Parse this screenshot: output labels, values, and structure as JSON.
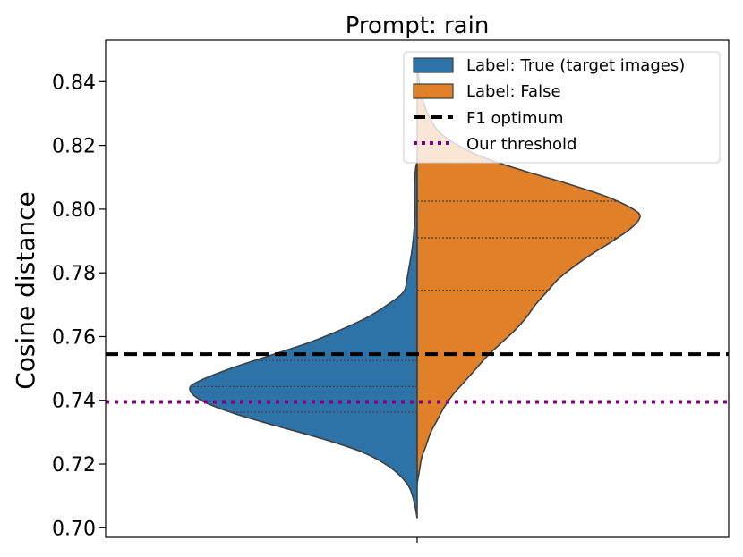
{
  "chart_data": {
    "type": "violin",
    "title": "Prompt: rain",
    "xlabel": "",
    "ylabel": "Cosine distance",
    "ylim": [
      0.697,
      0.853
    ],
    "yticks": [
      0.7,
      0.72,
      0.74,
      0.76,
      0.78,
      0.8,
      0.82,
      0.84
    ],
    "ytick_labels": [
      "0.70",
      "0.72",
      "0.74",
      "0.76",
      "0.78",
      "0.80",
      "0.82",
      "0.84"
    ],
    "split": true,
    "inner": "quartile",
    "grid": false,
    "legend_position": "top-right",
    "series": [
      {
        "name": "Label: True (target images)",
        "side": "left",
        "color": "#2e73a8",
        "range": [
          0.703,
          0.815
        ],
        "quartiles": [
          0.7363,
          0.7443,
          0.7525
        ],
        "density": [
          [
            0.703,
            0.0
          ],
          [
            0.707,
            0.01
          ],
          [
            0.712,
            0.03
          ],
          [
            0.716,
            0.07
          ],
          [
            0.72,
            0.14
          ],
          [
            0.724,
            0.25
          ],
          [
            0.728,
            0.42
          ],
          [
            0.732,
            0.62
          ],
          [
            0.736,
            0.81
          ],
          [
            0.74,
            0.95
          ],
          [
            0.7435,
            1.0
          ],
          [
            0.746,
            0.96
          ],
          [
            0.75,
            0.82
          ],
          [
            0.754,
            0.65
          ],
          [
            0.758,
            0.48
          ],
          [
            0.762,
            0.34
          ],
          [
            0.766,
            0.22
          ],
          [
            0.77,
            0.13
          ],
          [
            0.774,
            0.06
          ],
          [
            0.778,
            0.045
          ],
          [
            0.782,
            0.035
          ],
          [
            0.786,
            0.025
          ],
          [
            0.79,
            0.018
          ],
          [
            0.795,
            0.012
          ],
          [
            0.8,
            0.01
          ],
          [
            0.805,
            0.012
          ],
          [
            0.81,
            0.01
          ],
          [
            0.813,
            0.006
          ],
          [
            0.815,
            0.0
          ]
        ]
      },
      {
        "name": "Label: False",
        "side": "right",
        "color": "#e08028",
        "range": [
          0.714,
          0.845
        ],
        "quartiles": [
          0.7745,
          0.791,
          0.8025
        ],
        "density": [
          [
            0.714,
            0.0
          ],
          [
            0.718,
            0.01
          ],
          [
            0.722,
            0.02
          ],
          [
            0.726,
            0.04
          ],
          [
            0.73,
            0.06
          ],
          [
            0.734,
            0.09
          ],
          [
            0.738,
            0.12
          ],
          [
            0.742,
            0.16
          ],
          [
            0.746,
            0.21
          ],
          [
            0.75,
            0.26
          ],
          [
            0.754,
            0.31
          ],
          [
            0.758,
            0.37
          ],
          [
            0.762,
            0.43
          ],
          [
            0.766,
            0.48
          ],
          [
            0.77,
            0.52
          ],
          [
            0.774,
            0.57
          ],
          [
            0.778,
            0.62
          ],
          [
            0.782,
            0.69
          ],
          [
            0.786,
            0.77
          ],
          [
            0.79,
            0.86
          ],
          [
            0.794,
            0.94
          ],
          [
            0.7975,
            0.98
          ],
          [
            0.8,
            0.95
          ],
          [
            0.804,
            0.83
          ],
          [
            0.808,
            0.66
          ],
          [
            0.812,
            0.47
          ],
          [
            0.816,
            0.3
          ],
          [
            0.82,
            0.18
          ],
          [
            0.824,
            0.1
          ],
          [
            0.828,
            0.06
          ],
          [
            0.832,
            0.035
          ],
          [
            0.836,
            0.02
          ],
          [
            0.84,
            0.01
          ],
          [
            0.843,
            0.004
          ],
          [
            0.845,
            0.0
          ]
        ]
      }
    ],
    "reference_lines": [
      {
        "name": "F1 optimum",
        "value": 0.7545,
        "color": "#000000",
        "style": "dashed"
      },
      {
        "name": "Our threshold",
        "value": 0.7395,
        "color": "#800080",
        "style": "dotted"
      }
    ]
  }
}
